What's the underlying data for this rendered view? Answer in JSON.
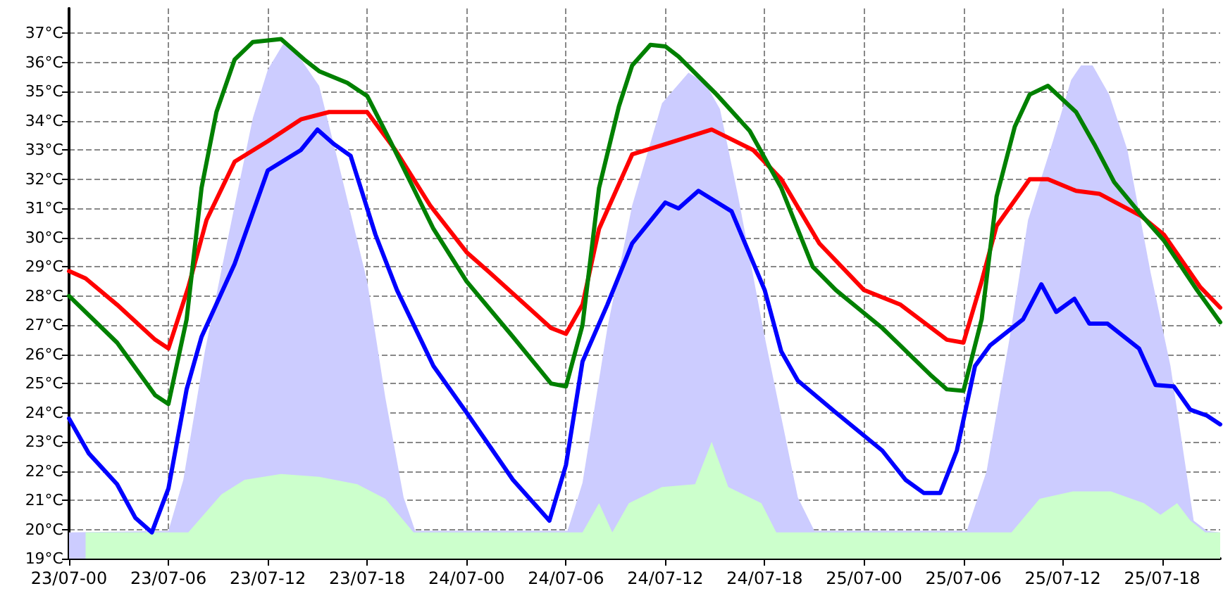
{
  "chart_data": {
    "type": "line",
    "xlim": [
      "--07-23T00:00",
      "--07-25T21:30"
    ],
    "ylim": [
      19,
      37.85
    ],
    "xticks": [
      {
        "value": "--07-23T00:00",
        "label": "23/07-00"
      },
      {
        "value": "--07-23T06:00",
        "label": "23/07-06"
      },
      {
        "value": "--07-23T12:00",
        "label": "23/07-12"
      },
      {
        "value": "--07-23T18:00",
        "label": "23/07-18"
      },
      {
        "value": "--07-24T00:00",
        "label": "24/07-00"
      },
      {
        "value": "--07-24T06:00",
        "label": "24/07-06"
      },
      {
        "value": "--07-24T12:00",
        "label": "24/07-12"
      },
      {
        "value": "--07-24T18:00",
        "label": "24/07-18"
      },
      {
        "value": "--07-25T00:00",
        "label": "25/07-00"
      },
      {
        "value": "--07-25T06:00",
        "label": "25/07-06"
      },
      {
        "value": "--07-25T12:00",
        "label": "25/07-12"
      },
      {
        "value": "--07-25T18:00",
        "label": "25/07-18"
      }
    ],
    "yticks": [
      {
        "value": 19,
        "label": "19°C"
      },
      {
        "value": 20,
        "label": "20°C"
      },
      {
        "value": 21,
        "label": "21°C"
      },
      {
        "value": 22,
        "label": "22°C"
      },
      {
        "value": 23,
        "label": "23°C"
      },
      {
        "value": 24,
        "label": "24°C"
      },
      {
        "value": 25,
        "label": "25°C"
      },
      {
        "value": 26,
        "label": "26°C"
      },
      {
        "value": 27,
        "label": "27°C"
      },
      {
        "value": 28,
        "label": "28°C"
      },
      {
        "value": 29,
        "label": "29°C"
      },
      {
        "value": 30,
        "label": "30°C"
      },
      {
        "value": 31,
        "label": "31°C"
      },
      {
        "value": 32,
        "label": "32°C"
      },
      {
        "value": 33,
        "label": "33°C"
      },
      {
        "value": 34,
        "label": "34°C"
      },
      {
        "value": 35,
        "label": "35°C"
      },
      {
        "value": 36,
        "label": "36°C"
      },
      {
        "value": 37,
        "label": "37°C"
      }
    ],
    "grid": true,
    "marker": "none",
    "line_style": "solid",
    "series": [
      {
        "type": "area",
        "color": "#ccccff",
        "x": [
          "--07-23T00:00",
          "--07-23T06:00",
          "--07-23T06:54",
          "--07-23T08:12",
          "--07-23T10:00",
          "--07-23T11:06",
          "--07-23T12:00",
          "--07-23T13:00",
          "--07-23T14:00",
          "--07-23T15:06",
          "--07-23T16:12",
          "--07-23T18:00",
          "--07-23T19:06",
          "--07-23T20:12",
          "--07-23T20:54",
          "--07-24T06:06",
          "--07-24T07:00",
          "--07-24T08:30",
          "--07-24T10:00",
          "--07-24T11:48",
          "--07-24T13:24",
          "--07-24T14:24",
          "--07-24T15:18",
          "--07-24T16:24",
          "--07-24T18:00",
          "--07-24T20:00",
          "--07-24T21:00",
          "--07-25T06:12",
          "--07-25T07:24",
          "--07-25T08:48",
          "--07-25T09:54",
          "--07-25T11:24",
          "--07-25T12:30",
          "--07-25T13:06",
          "--07-25T13:48",
          "--07-25T14:48",
          "--07-25T15:54",
          "--07-25T17:18",
          "--07-25T18:30",
          "--07-25T19:00",
          "--07-25T19:54",
          "--07-25T20:42",
          "--07-25T21:30"
        ],
        "values": [
          19.9,
          19.95,
          21.7,
          26.1,
          31.1,
          34.1,
          35.75,
          36.7,
          36.1,
          35.2,
          32.7,
          28.5,
          24.5,
          21.1,
          19.95,
          19.95,
          21.6,
          26.9,
          31.1,
          34.6,
          35.65,
          35.3,
          34.4,
          31.4,
          26.6,
          21.1,
          19.95,
          19.95,
          22,
          26.6,
          30.6,
          33.3,
          35.4,
          35.9,
          35.9,
          34.9,
          33,
          28.8,
          25.6,
          23.7,
          20.3,
          19.95,
          19.9
        ]
      },
      {
        "type": "area",
        "color": "#ccffcc",
        "x": [
          "--07-23T01:00",
          "--07-23T07:12",
          "--07-23T09:12",
          "--07-23T10:36",
          "--07-23T12:48",
          "--07-23T15:06",
          "--07-23T17:24",
          "--07-23T19:06",
          "--07-23T20:48",
          "--07-24T07:00",
          "--07-24T08:00",
          "--07-24T08:48",
          "--07-24T09:48",
          "--07-24T11:48",
          "--07-24T13:48",
          "--07-24T14:48",
          "--07-24T15:48",
          "--07-24T17:48",
          "--07-24T18:42",
          "--07-25T08:54",
          "--07-25T10:36",
          "--07-25T12:36",
          "--07-25T14:54",
          "--07-25T16:54",
          "--07-25T17:54",
          "--07-25T18:54",
          "--07-25T19:42",
          "--07-25T20:36",
          "--07-25T21:30"
        ],
        "values": [
          19.9,
          19.9,
          21.2,
          21.7,
          21.9,
          21.8,
          21.55,
          21.05,
          19.9,
          19.9,
          20.9,
          19.9,
          20.9,
          21.45,
          21.55,
          23,
          21.45,
          20.9,
          19.9,
          19.9,
          21.05,
          21.3,
          21.3,
          20.9,
          20.5,
          20.9,
          20.3,
          19.9,
          19.9
        ]
      },
      {
        "color": "#ff0000",
        "x": [
          "--07-23T00:00",
          "--07-23T01:00",
          "--07-23T02:54",
          "--07-23T05:12",
          "--07-23T06:00",
          "--07-23T07:12",
          "--07-23T08:18",
          "--07-23T10:00",
          "--07-23T12:00",
          "--07-23T14:00",
          "--07-23T15:42",
          "--07-23T18:00",
          "--07-23T19:42",
          "--07-23T21:48",
          "--07-24T00:00",
          "--07-24T01:24",
          "--07-24T05:06",
          "--07-24T06:00",
          "--07-24T07:00",
          "--07-24T08:00",
          "--07-24T10:00",
          "--07-24T12:00",
          "--07-24T14:48",
          "--07-24T17:18",
          "--07-24T19:00",
          "--07-24T21:18",
          "--07-25T00:00",
          "--07-25T02:12",
          "--07-25T05:00",
          "--07-25T06:00",
          "--07-25T07:06",
          "--07-25T08:00",
          "--07-25T10:00",
          "--07-25T11:06",
          "--07-25T12:48",
          "--07-25T14:12",
          "--07-25T16:42",
          "--07-25T18:06",
          "--07-25T20:18",
          "--07-25T21:30"
        ],
        "values": [
          28.85,
          28.6,
          27.7,
          26.5,
          26.2,
          28.3,
          30.6,
          32.6,
          33.3,
          34.05,
          34.3,
          34.3,
          33,
          31.1,
          29.5,
          28.8,
          26.9,
          26.7,
          27.7,
          30.3,
          32.85,
          33.2,
          33.7,
          33,
          32,
          29.8,
          28.2,
          27.7,
          26.5,
          26.4,
          28.5,
          30.4,
          32,
          32,
          31.6,
          31.5,
          30.75,
          30.1,
          28.3,
          27.6
        ]
      },
      {
        "color": "#008000",
        "x": [
          "--07-23T00:00",
          "--07-23T02:54",
          "--07-23T05:12",
          "--07-23T06:00",
          "--07-23T07:06",
          "--07-23T08:00",
          "--07-23T08:54",
          "--07-23T10:00",
          "--07-23T11:06",
          "--07-23T12:48",
          "--07-23T14:12",
          "--07-23T15:06",
          "--07-23T16:48",
          "--07-23T18:00",
          "--07-23T19:24",
          "--07-23T22:00",
          "--07-24T00:00",
          "--07-24T02:48",
          "--07-24T05:06",
          "--07-24T06:00",
          "--07-24T07:00",
          "--07-24T08:00",
          "--07-24T09:12",
          "--07-24T10:00",
          "--07-24T11:06",
          "--07-24T12:00",
          "--07-24T12:48",
          "--07-24T15:06",
          "--07-24T17:06",
          "--07-24T19:00",
          "--07-24T20:54",
          "--07-24T22:18",
          "--07-25T01:06",
          "--07-25T04:00",
          "--07-25T05:00",
          "--07-25T06:00",
          "--07-25T07:06",
          "--07-25T08:00",
          "--07-25T09:06",
          "--07-25T10:00",
          "--07-25T11:06",
          "--07-25T12:48",
          "--07-25T13:54",
          "--07-25T15:06",
          "--07-25T16:42",
          "--07-25T18:06",
          "--07-25T20:06",
          "--07-25T21:30"
        ],
        "values": [
          28,
          26.4,
          24.6,
          24.3,
          27.2,
          31.7,
          34.3,
          36.1,
          36.7,
          36.8,
          36.1,
          35.7,
          35.3,
          34.85,
          33.3,
          30.3,
          28.5,
          26.6,
          25,
          24.9,
          27,
          31.7,
          34.5,
          35.9,
          36.6,
          36.55,
          36.2,
          34.9,
          33.65,
          31.7,
          29,
          28.2,
          26.9,
          25.3,
          24.8,
          24.75,
          27.2,
          31.4,
          33.8,
          34.9,
          35.2,
          34.3,
          33.2,
          31.9,
          30.8,
          29.9,
          28.2,
          27.1
        ]
      },
      {
        "color": "#0000ff",
        "x": [
          "--07-23T00:00",
          "--07-23T01:12",
          "--07-23T02:54",
          "--07-23T04:00",
          "--07-23T05:00",
          "--07-23T06:00",
          "--07-23T07:06",
          "--07-23T08:00",
          "--07-23T10:00",
          "--07-23T12:00",
          "--07-23T14:00",
          "--07-23T15:00",
          "--07-23T16:00",
          "--07-23T17:00",
          "--07-23T18:30",
          "--07-23T19:48",
          "--07-23T22:00",
          "--07-24T00:00",
          "--07-24T02:48",
          "--07-24T05:00",
          "--07-24T06:00",
          "--07-24T07:00",
          "--07-24T08:30",
          "--07-24T10:00",
          "--07-24T12:00",
          "--07-24T12:48",
          "--07-24T14:00",
          "--07-24T16:00",
          "--07-24T18:00",
          "--07-24T19:00",
          "--07-24T20:00",
          "--07-24T22:18",
          "--07-25T01:06",
          "--07-25T02:30",
          "--07-25T03:36",
          "--07-25T04:36",
          "--07-25T05:36",
          "--07-25T06:42",
          "--07-25T07:36",
          "--07-25T09:36",
          "--07-25T10:42",
          "--07-25T11:36",
          "--07-25T12:42",
          "--07-25T13:36",
          "--07-25T14:42",
          "--07-25T16:36",
          "--07-25T17:36",
          "--07-25T18:42",
          "--07-25T19:42",
          "--07-25T20:42",
          "--07-25T21:30"
        ],
        "values": [
          23.8,
          22.6,
          21.55,
          20.4,
          19.9,
          21.4,
          24.8,
          26.6,
          29.1,
          32.3,
          33,
          33.7,
          33.2,
          32.8,
          30.1,
          28.2,
          25.6,
          24,
          21.7,
          20.3,
          22.2,
          25.75,
          27.7,
          29.8,
          31.2,
          31,
          31.6,
          30.9,
          28.2,
          26.1,
          25.1,
          24,
          22.7,
          21.7,
          21.25,
          21.25,
          22.7,
          25.6,
          26.3,
          27.2,
          28.4,
          27.45,
          27.9,
          27.05,
          27.05,
          26.2,
          24.95,
          24.9,
          24.1,
          23.9,
          23.6
        ]
      }
    ]
  }
}
